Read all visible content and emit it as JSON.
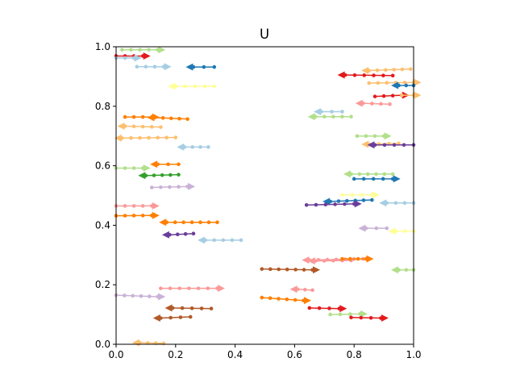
{
  "chart_data": {
    "type": "scatter",
    "title": "U",
    "xlabel": "",
    "ylabel": "",
    "xlim": [
      0,
      1
    ],
    "ylim": [
      0,
      1
    ],
    "xticks": [
      "0.0",
      "0.2",
      "0.4",
      "0.6",
      "0.8",
      "1.0"
    ],
    "yticks": [
      "0.0",
      "0.2",
      "0.4",
      "0.6",
      "0.8",
      "1.0"
    ],
    "grid": false,
    "legend": "none",
    "series": [
      {
        "color": "#1f78b4",
        "marker_end": "left",
        "x": [
          0.26,
          0.33
        ],
        "y": [
          0.932,
          0.932
        ]
      },
      {
        "color": "#e31a1c",
        "marker_end": "right",
        "x": [
          0.0,
          0.09
        ],
        "y": [
          0.969,
          0.969
        ]
      },
      {
        "color": "#a6cee3",
        "marker_end": "right",
        "x": [
          0.0,
          0.06
        ],
        "y": [
          0.962,
          0.962
        ]
      },
      {
        "color": "#b2df8a",
        "marker_end": "right",
        "x": [
          0.02,
          0.14
        ],
        "y": [
          0.99,
          0.99
        ]
      },
      {
        "color": "#a6cee3",
        "marker_end": "right",
        "x": [
          0.07,
          0.16
        ],
        "y": [
          0.933,
          0.933
        ]
      },
      {
        "color": "#ffff99",
        "marker_end": "left",
        "x": [
          0.2,
          0.33
        ],
        "y": [
          0.867,
          0.867
        ]
      },
      {
        "color": "#ff7f00",
        "marker_end": "right",
        "x": [
          0.03,
          0.12
        ],
        "y": [
          0.764,
          0.764
        ]
      },
      {
        "color": "#ff7f00",
        "marker_end": "left",
        "x": [
          0.13,
          0.24
        ],
        "y": [
          0.762,
          0.757
        ]
      },
      {
        "color": "#fdbf6f",
        "marker_end": "left",
        "x": [
          0.03,
          0.15
        ],
        "y": [
          0.733,
          0.73
        ]
      },
      {
        "color": "#fdbf6f",
        "marker_end": "left",
        "x": [
          0.02,
          0.2
        ],
        "y": [
          0.693,
          0.695
        ]
      },
      {
        "color": "#a6cee3",
        "marker_end": "left",
        "x": [
          0.23,
          0.31
        ],
        "y": [
          0.663,
          0.663
        ]
      },
      {
        "color": "#ff7f00",
        "marker_end": "left",
        "x": [
          0.14,
          0.21
        ],
        "y": [
          0.605,
          0.605
        ]
      },
      {
        "color": "#b2df8a",
        "marker_end": "right",
        "x": [
          0.0,
          0.09
        ],
        "y": [
          0.592,
          0.592
        ]
      },
      {
        "color": "#33a02c",
        "marker_end": "left",
        "x": [
          0.1,
          0.21
        ],
        "y": [
          0.567,
          0.57
        ]
      },
      {
        "color": "#cab2d6",
        "marker_end": "right",
        "x": [
          0.12,
          0.24
        ],
        "y": [
          0.527,
          0.53
        ]
      },
      {
        "color": "#fb9a99",
        "marker_end": "right",
        "x": [
          0.0,
          0.12
        ],
        "y": [
          0.465,
          0.465
        ]
      },
      {
        "color": "#ff7f00",
        "marker_end": "right",
        "x": [
          0.0,
          0.12
        ],
        "y": [
          0.432,
          0.433
        ]
      },
      {
        "color": "#ff7f00",
        "marker_end": "left",
        "x": [
          0.17,
          0.34
        ],
        "y": [
          0.41,
          0.41
        ]
      },
      {
        "color": "#6a3d9a",
        "marker_end": "left",
        "x": [
          0.18,
          0.26
        ],
        "y": [
          0.368,
          0.372
        ]
      },
      {
        "color": "#a6cee3",
        "marker_end": "left",
        "x": [
          0.3,
          0.42
        ],
        "y": [
          0.35,
          0.35
        ]
      },
      {
        "color": "#fb9a99",
        "marker_end": "right",
        "x": [
          0.15,
          0.34
        ],
        "y": [
          0.188,
          0.188
        ]
      },
      {
        "color": "#cab2d6",
        "marker_end": "right",
        "x": [
          0.0,
          0.14
        ],
        "y": [
          0.165,
          0.16
        ]
      },
      {
        "color": "#b15928",
        "marker_end": "left",
        "x": [
          0.19,
          0.32
        ],
        "y": [
          0.122,
          0.12
        ]
      },
      {
        "color": "#b15928",
        "marker_end": "left",
        "x": [
          0.15,
          0.25
        ],
        "y": [
          0.088,
          0.092
        ]
      },
      {
        "color": "#fdbf6f",
        "marker_end": "left",
        "x": [
          0.08,
          0.16
        ],
        "y": [
          0.005,
          0.003
        ]
      },
      {
        "color": "#e31a1c",
        "marker_end": "left",
        "x": [
          0.77,
          0.93
        ],
        "y": [
          0.905,
          0.903
        ]
      },
      {
        "color": "#fdbf6f",
        "marker_end": "left",
        "x": [
          0.85,
          0.99
        ],
        "y": [
          0.92,
          0.925
        ]
      },
      {
        "color": "#fdbf6f",
        "marker_end": "right",
        "x": [
          0.85,
          1.0
        ],
        "y": [
          0.878,
          0.88
        ]
      },
      {
        "color": "#1f78b4",
        "marker_end": "left",
        "x": [
          0.95,
          1.0
        ],
        "y": [
          0.87,
          0.87
        ]
      },
      {
        "color": "#e31a1c",
        "marker_end": "right",
        "x": [
          0.87,
          0.96
        ],
        "y": [
          0.833,
          0.837
        ]
      },
      {
        "color": "#fdbf6f",
        "marker_end": "right",
        "x": [
          0.96,
          1.0
        ],
        "y": [
          0.837,
          0.837
        ]
      },
      {
        "color": "#fb9a99",
        "marker_end": "left",
        "x": [
          0.83,
          0.92
        ],
        "y": [
          0.81,
          0.807
        ]
      },
      {
        "color": "#a6cee3",
        "marker_end": "left",
        "x": [
          0.69,
          0.76
        ],
        "y": [
          0.782,
          0.782
        ]
      },
      {
        "color": "#b2df8a",
        "marker_end": "left",
        "x": [
          0.67,
          0.79
        ],
        "y": [
          0.765,
          0.765
        ]
      },
      {
        "color": "#b2df8a",
        "marker_end": "right",
        "x": [
          0.81,
          0.9
        ],
        "y": [
          0.7,
          0.7
        ]
      },
      {
        "color": "#fdbf6f",
        "marker_end": "left",
        "x": [
          0.85,
          0.95
        ],
        "y": [
          0.672,
          0.675
        ]
      },
      {
        "color": "#6a3d9a",
        "marker_end": "left",
        "x": [
          0.87,
          1.0
        ],
        "y": [
          0.67,
          0.67
        ]
      },
      {
        "color": "#b2df8a",
        "marker_end": "left",
        "x": [
          0.79,
          0.93
        ],
        "y": [
          0.572,
          0.572
        ]
      },
      {
        "color": "#1f78b4",
        "marker_end": "right",
        "x": [
          0.8,
          0.93
        ],
        "y": [
          0.556,
          0.556
        ]
      },
      {
        "color": "#ffff99",
        "marker_end": "right",
        "x": [
          0.76,
          0.86
        ],
        "y": [
          0.502,
          0.502
        ]
      },
      {
        "color": "#1f78b4",
        "marker_end": "left",
        "x": [
          0.72,
          0.86
        ],
        "y": [
          0.48,
          0.485
        ]
      },
      {
        "color": "#6a3d9a",
        "marker_end": "right",
        "x": [
          0.64,
          0.8
        ],
        "y": [
          0.468,
          0.472
        ]
      },
      {
        "color": "#a6cee3",
        "marker_end": "left",
        "x": [
          0.91,
          1.0
        ],
        "y": [
          0.475,
          0.475
        ]
      },
      {
        "color": "#cab2d6",
        "marker_end": "left",
        "x": [
          0.84,
          0.91
        ],
        "y": [
          0.39,
          0.39
        ]
      },
      {
        "color": "#ffff99",
        "marker_end": "left",
        "x": [
          0.94,
          1.0
        ],
        "y": [
          0.38,
          0.38
        ]
      },
      {
        "color": "#fb9a99",
        "marker_end": "left",
        "x": [
          0.65,
          0.83
        ],
        "y": [
          0.283,
          0.287
        ]
      },
      {
        "color": "#fb9a99",
        "marker_end": "left",
        "x": [
          0.67,
          0.79
        ],
        "y": [
          0.28,
          0.282
        ]
      },
      {
        "color": "#ff7f00",
        "marker_end": "right",
        "x": [
          0.76,
          0.84
        ],
        "y": [
          0.287,
          0.287
        ]
      },
      {
        "color": "#b15928",
        "marker_end": "right",
        "x": [
          0.49,
          0.66
        ],
        "y": [
          0.253,
          0.25
        ]
      },
      {
        "color": "#b2df8a",
        "marker_end": "left",
        "x": [
          0.95,
          1.0
        ],
        "y": [
          0.25,
          0.25
        ]
      },
      {
        "color": "#fb9a99",
        "marker_end": "left",
        "x": [
          0.61,
          0.66
        ],
        "y": [
          0.185,
          0.182
        ]
      },
      {
        "color": "#ff7f00",
        "marker_end": "right",
        "x": [
          0.49,
          0.63
        ],
        "y": [
          0.157,
          0.147
        ]
      },
      {
        "color": "#e31a1c",
        "marker_end": "right",
        "x": [
          0.65,
          0.75
        ],
        "y": [
          0.122,
          0.12
        ]
      },
      {
        "color": "#b2df8a",
        "marker_end": "right",
        "x": [
          0.72,
          0.82
        ],
        "y": [
          0.1,
          0.102
        ]
      },
      {
        "color": "#e31a1c",
        "marker_end": "right",
        "x": [
          0.79,
          0.89
        ],
        "y": [
          0.09,
          0.088
        ]
      }
    ]
  }
}
